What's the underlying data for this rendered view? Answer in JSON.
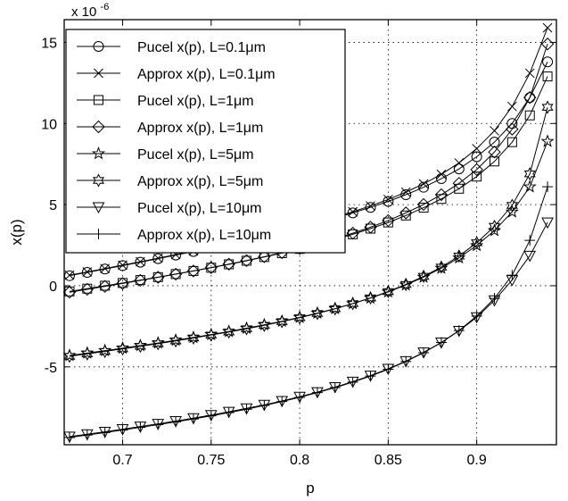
{
  "chart_data": {
    "type": "line",
    "title": "",
    "xlabel": "p",
    "ylabel": "x(p)",
    "exponent_label": "x 10",
    "exponent_power": "-6",
    "xlim": [
      0.667,
      0.945
    ],
    "ylim": [
      -9.8,
      16.4
    ],
    "xticks": [
      0.7,
      0.75,
      0.8,
      0.85,
      0.9
    ],
    "xtick_labels": [
      "0.7",
      "0.75",
      "0.8",
      "0.85",
      "0.9"
    ],
    "yticks": [
      -5,
      0,
      5,
      10,
      15
    ],
    "ytick_labels": [
      "-5",
      "0",
      "5",
      "10",
      "15"
    ],
    "grid": true,
    "legend_position": "top-left",
    "x": [
      0.67,
      0.68,
      0.69,
      0.7,
      0.71,
      0.72,
      0.73,
      0.74,
      0.75,
      0.76,
      0.77,
      0.78,
      0.79,
      0.8,
      0.81,
      0.82,
      0.83,
      0.84,
      0.85,
      0.86,
      0.87,
      0.88,
      0.89,
      0.9,
      0.91,
      0.92,
      0.93,
      0.94
    ],
    "series": [
      {
        "name": "Pucel x(p), L=0.1μm",
        "marker": "circle",
        "values": [
          0.62,
          0.82,
          1.03,
          1.24,
          1.45,
          1.67,
          1.89,
          2.11,
          2.34,
          2.57,
          2.81,
          3.06,
          3.32,
          3.59,
          3.87,
          4.17,
          4.49,
          4.83,
          5.2,
          5.61,
          6.07,
          6.6,
          7.2,
          7.95,
          8.85,
          10.0,
          11.6,
          13.8
        ]
      },
      {
        "name": "Approx x(p), L=0.1μm",
        "marker": "x",
        "values": [
          0.65,
          0.85,
          1.06,
          1.27,
          1.48,
          1.7,
          1.92,
          2.14,
          2.37,
          2.6,
          2.84,
          3.09,
          3.35,
          3.63,
          3.92,
          4.23,
          4.56,
          4.92,
          5.32,
          5.77,
          6.28,
          6.87,
          7.57,
          8.45,
          9.55,
          11.05,
          13.1,
          15.9
        ]
      },
      {
        "name": "Pucel x(p), L=1μm",
        "marker": "square",
        "values": [
          -0.35,
          -0.18,
          -0.0,
          0.17,
          0.35,
          0.53,
          0.72,
          0.91,
          1.11,
          1.32,
          1.54,
          1.77,
          2.01,
          2.27,
          2.55,
          2.85,
          3.17,
          3.52,
          3.9,
          4.33,
          4.81,
          5.35,
          5.98,
          6.73,
          7.66,
          8.85,
          10.5,
          12.9
        ]
      },
      {
        "name": "Approx x(p), L=1μm",
        "marker": "diamond",
        "values": [
          -0.4,
          -0.22,
          -0.04,
          0.14,
          0.33,
          0.52,
          0.71,
          0.91,
          1.12,
          1.33,
          1.55,
          1.79,
          2.04,
          2.3,
          2.59,
          2.9,
          3.24,
          3.61,
          4.02,
          4.49,
          5.01,
          5.61,
          6.31,
          7.16,
          8.24,
          9.65,
          11.6,
          14.9
        ]
      },
      {
        "name": "Pucel x(p), L=5μm",
        "marker": "star",
        "values": [
          -4.3,
          -4.15,
          -4.0,
          -3.85,
          -3.69,
          -3.53,
          -3.36,
          -3.19,
          -3.01,
          -2.82,
          -2.62,
          -2.41,
          -2.19,
          -1.95,
          -1.69,
          -1.41,
          -1.1,
          -0.76,
          -0.38,
          0.05,
          0.53,
          1.08,
          1.72,
          2.48,
          3.4,
          4.55,
          6.1,
          8.9
        ]
      },
      {
        "name": "Approx x(p), L=5μm",
        "marker": "hexagram",
        "values": [
          -4.35,
          -4.2,
          -4.05,
          -3.89,
          -3.73,
          -3.57,
          -3.4,
          -3.22,
          -3.04,
          -2.85,
          -2.65,
          -2.44,
          -2.21,
          -1.97,
          -1.71,
          -1.42,
          -1.1,
          -0.75,
          -0.36,
          0.08,
          0.58,
          1.15,
          1.83,
          2.65,
          3.66,
          4.95,
          6.9,
          11.0
        ]
      },
      {
        "name": "Pucel x(p), L=10μm",
        "marker": "triangle-down",
        "values": [
          -9.3,
          -9.15,
          -9.0,
          -8.84,
          -8.68,
          -8.51,
          -8.34,
          -8.16,
          -7.97,
          -7.77,
          -7.56,
          -7.34,
          -7.1,
          -6.84,
          -6.56,
          -6.25,
          -5.91,
          -5.54,
          -5.12,
          -4.65,
          -4.11,
          -3.5,
          -2.78,
          -1.94,
          -0.9,
          0.35,
          1.85,
          3.9
        ]
      },
      {
        "name": "Approx x(p), L=10μm",
        "marker": "plus",
        "values": [
          -9.35,
          -9.2,
          -9.05,
          -8.89,
          -8.73,
          -8.56,
          -8.39,
          -8.21,
          -8.02,
          -7.82,
          -7.61,
          -7.38,
          -7.14,
          -6.88,
          -6.59,
          -6.28,
          -5.94,
          -5.57,
          -5.15,
          -4.67,
          -4.13,
          -3.5,
          -2.76,
          -1.87,
          -0.78,
          0.65,
          2.8,
          6.1
        ]
      }
    ]
  }
}
